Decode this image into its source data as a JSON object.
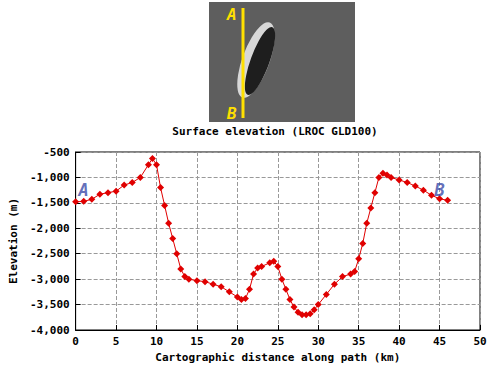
{
  "chart_data": {
    "type": "line",
    "title": "Surface elevation (LROC GLD100)",
    "x_label": "Cartographic distance along path (km)",
    "y_label": "Elevation (m)",
    "x": [
      0,
      1,
      2,
      3,
      4,
      5,
      6,
      7,
      8,
      9,
      9.5,
      10,
      10.5,
      11,
      11.5,
      12,
      12.5,
      13,
      13.5,
      14,
      15,
      16,
      17,
      18,
      19,
      20,
      20.5,
      21,
      21.5,
      22,
      22.5,
      23,
      24,
      24.5,
      25,
      25.5,
      26,
      26.5,
      27,
      27.5,
      28,
      28.5,
      29,
      29.5,
      30,
      31,
      32,
      33,
      34,
      34.5,
      35,
      35.5,
      36,
      36.5,
      37,
      37.5,
      38,
      38.5,
      39,
      40,
      41,
      42,
      43,
      44,
      45,
      46
    ],
    "series": [
      {
        "name": "Elevation",
        "color": "#e00000",
        "marker": "diamond",
        "line_style": "solid",
        "values": [
          -1480,
          -1470,
          -1430,
          -1330,
          -1300,
          -1270,
          -1150,
          -1100,
          -1000,
          -750,
          -630,
          -750,
          -1200,
          -1550,
          -1900,
          -2200,
          -2500,
          -2800,
          -2950,
          -3000,
          -3030,
          -3050,
          -3100,
          -3150,
          -3250,
          -3350,
          -3400,
          -3380,
          -3200,
          -2900,
          -2780,
          -2750,
          -2680,
          -2650,
          -2750,
          -3000,
          -3200,
          -3400,
          -3550,
          -3650,
          -3700,
          -3700,
          -3680,
          -3600,
          -3500,
          -3300,
          -3100,
          -2950,
          -2900,
          -2850,
          -2600,
          -2300,
          -1900,
          -1600,
          -1300,
          -1000,
          -920,
          -950,
          -1000,
          -1050,
          -1100,
          -1170,
          -1250,
          -1350,
          -1420,
          -1450
        ]
      }
    ],
    "xlim": [
      0,
      50
    ],
    "xticks": [
      0,
      5,
      10,
      15,
      20,
      25,
      30,
      35,
      40,
      45,
      50
    ],
    "ylim": [
      -4000,
      -500
    ],
    "yticks": [
      -4000,
      -3500,
      -3000,
      -2500,
      -2000,
      -1500,
      -1000,
      -500
    ],
    "grid": true,
    "annotations": [
      {
        "text": "A",
        "x": 1,
        "y": -1250,
        "color": "#3a4aa8"
      },
      {
        "text": "B",
        "x": 45,
        "y": -1250,
        "color": "#3a4aa8"
      }
    ],
    "inset_annotations": [
      {
        "text": "A",
        "color": "#ffe000"
      },
      {
        "text": "B",
        "color": "#ffe000"
      }
    ]
  }
}
